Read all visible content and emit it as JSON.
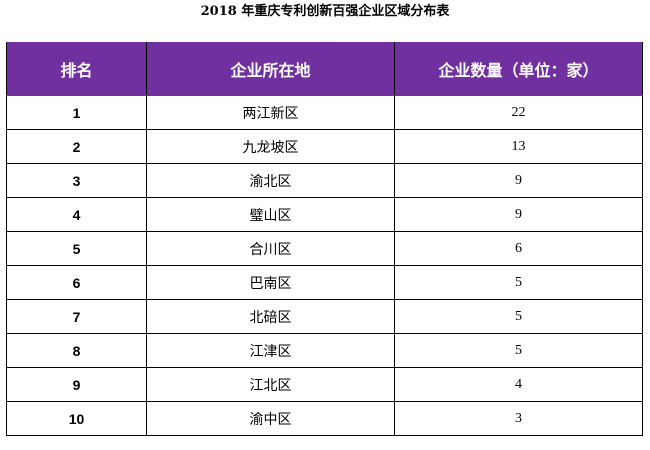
{
  "title": "2018 年重庆专利创新百强企业区域分布表",
  "headers": {
    "rank": "排名",
    "location": "企业所在地",
    "count": "企业数量（单位：家）"
  },
  "rows": [
    {
      "rank": "1",
      "district": "两江新区",
      "count": "22"
    },
    {
      "rank": "2",
      "district": "九龙坡区",
      "count": "13"
    },
    {
      "rank": "3",
      "district": "渝北区",
      "count": "9"
    },
    {
      "rank": "4",
      "district": "璧山区",
      "count": "9"
    },
    {
      "rank": "5",
      "district": "合川区",
      "count": "6"
    },
    {
      "rank": "6",
      "district": "巴南区",
      "count": "5"
    },
    {
      "rank": "7",
      "district": "北碚区",
      "count": "5"
    },
    {
      "rank": "8",
      "district": "江津区",
      "count": "5"
    },
    {
      "rank": "9",
      "district": "江北区",
      "count": "4"
    },
    {
      "rank": "10",
      "district": "渝中区",
      "count": "3"
    }
  ],
  "colors": {
    "header_bg": "#7030a0",
    "header_text": "#ffffff"
  }
}
